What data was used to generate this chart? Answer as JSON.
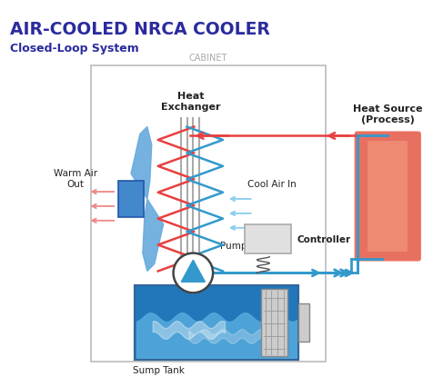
{
  "title": "AIR-COOLED NRCA COOLER",
  "subtitle": "Closed-Loop System",
  "cabinet_label": "CABINET",
  "title_color": "#2b2b9e",
  "subtitle_color": "#2b2b9e",
  "bg_color": "#ffffff",
  "red_color": "#e84040",
  "blue_color": "#3399cc",
  "pink_red": "#ee8888",
  "light_blue": "#88ccee",
  "fan_blade_color": "#66aadd",
  "motor_box_color": "#4488cc",
  "heat_source_color": "#e87060",
  "heat_source_highlight": "#f4a080",
  "sump_dark": "#2277bb",
  "sump_light": "#55aadd",
  "sump_wave": "#77bbee",
  "controller_fill": "#e0e0e0",
  "filter_fill": "#cccccc",
  "labels": {
    "heat_exchanger": "Heat\nExchanger",
    "warm_air_out": "Warm Air\nOut",
    "cool_air_in": "Cool Air In",
    "controller": "Controller",
    "pump": "Pump",
    "sump_tank": "Sump Tank",
    "heat_source": "Heat Source\n(Process)"
  }
}
